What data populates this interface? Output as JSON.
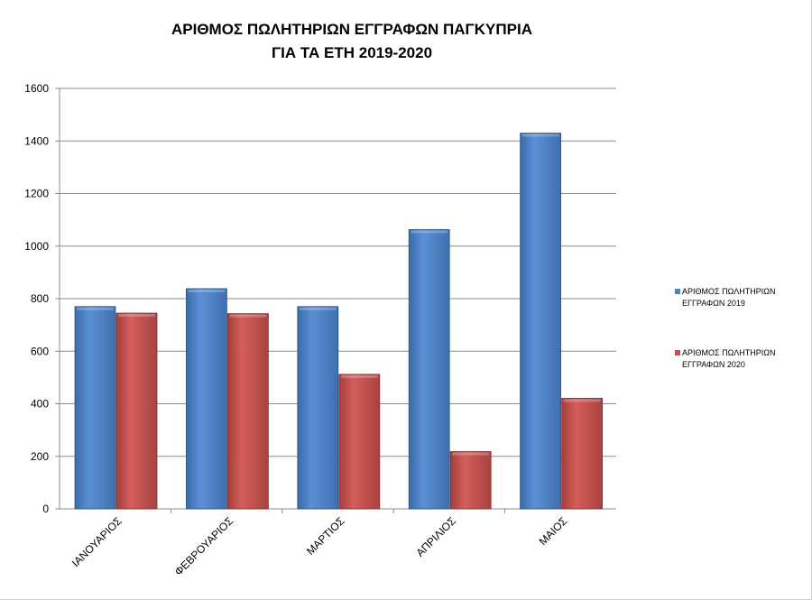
{
  "chart_data": {
    "type": "bar",
    "title_lines": [
      "ΑΡΙΘΜΟΣ ΠΩΛΗΤΗΡΙΩΝ ΕΓΓΡΑΦΩΝ ΠΑΓΚΥΠΡΙΑ",
      "ΓΙΑ ΤΑ ΕΤΗ 2019-2020"
    ],
    "categories": [
      "ΙΑΝΟΥΑΡΙΟΣ",
      "ΦΕΒΡΟΥΑΡΙΟΣ",
      "ΜΑΡΤΙΟΣ",
      "ΑΠΡΙΛΙΟΣ",
      "ΜΑΙΟΣ"
    ],
    "series": [
      {
        "name": "ΑΡΙΘΜΟΣ ΠΩΛΗΤΗΡΙΩΝ ΕΓΓΡΑΦΩΝ 2019",
        "color": "#4f81bd",
        "values": [
          770,
          838,
          770,
          1063,
          1430
        ]
      },
      {
        "name": "ΑΡΙΘΜΟΣ ΠΩΛΗΤΗΡΙΩΝ ΕΓΓΡΑΦΩΝ 2020",
        "color": "#c0504d",
        "values": [
          745,
          743,
          512,
          218,
          421
        ]
      }
    ],
    "ylim": [
      0,
      1600
    ],
    "yticks": [
      0,
      200,
      400,
      600,
      800,
      1000,
      1200,
      1400,
      1600
    ],
    "xlabel": "",
    "ylabel": "",
    "grid": true,
    "legend_position": "right"
  }
}
